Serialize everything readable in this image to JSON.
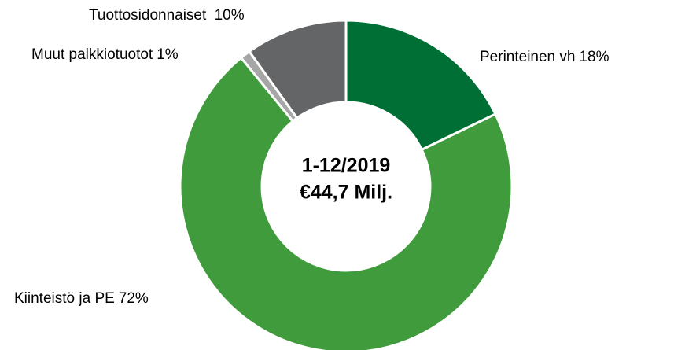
{
  "chart_data": {
    "type": "donut",
    "categories": [
      "Perinteinen vh",
      "Kiinteistö ja PE",
      "Muut palkkiotuotot",
      "Tuottosidonnaiset "
    ],
    "values": [
      18,
      72,
      1,
      10
    ],
    "value_labels": [
      "18%",
      "72%",
      "1%",
      "10%"
    ],
    "colors": [
      "#006f35",
      "#3f9b3b",
      "#a6a6a6",
      "#646567"
    ],
    "center_label": [
      "1-12/2019",
      "€44,7 Milj."
    ]
  }
}
